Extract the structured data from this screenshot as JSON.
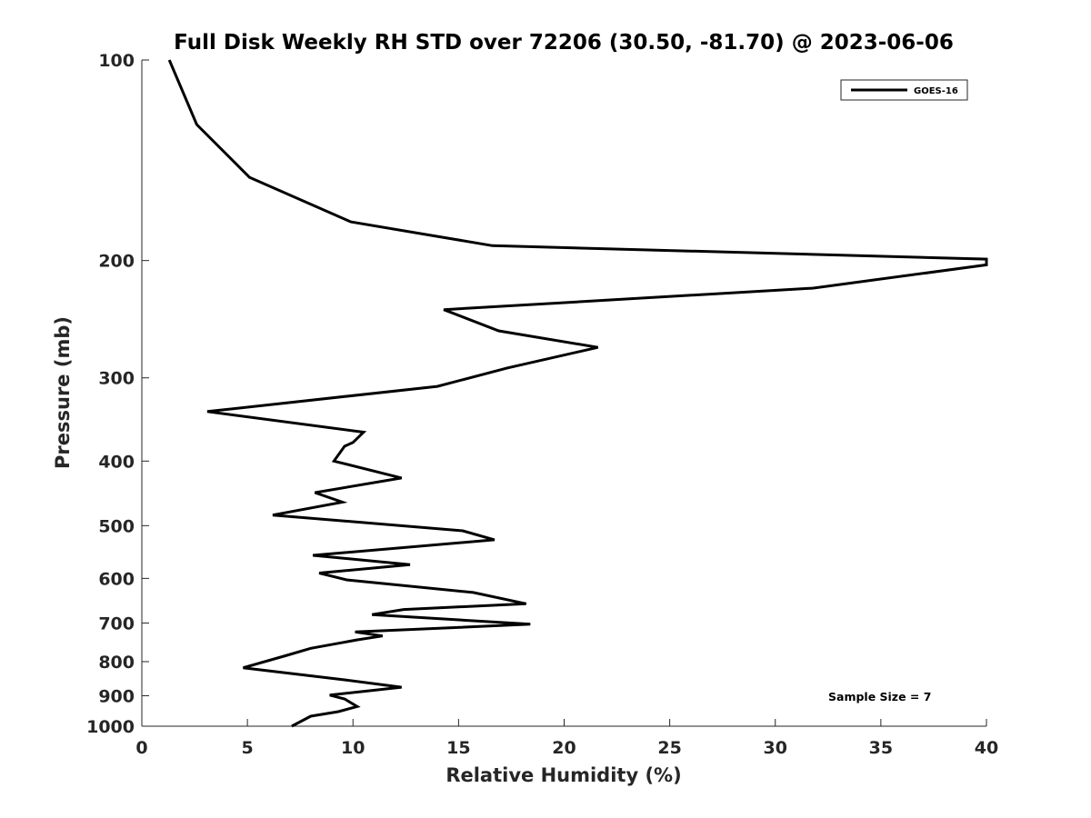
{
  "chart_data": {
    "type": "line",
    "title": "Full Disk Weekly RH STD over 72206 (30.50, -81.70) @ 2023-06-06",
    "xlabel": "Relative Humidity (%)",
    "ylabel": "Pressure (mb)",
    "xlim": [
      0,
      40
    ],
    "ylim": [
      1000,
      100
    ],
    "yscale": "log",
    "y_inverted": true,
    "xticks": [
      0,
      5,
      10,
      15,
      20,
      25,
      30,
      35,
      40
    ],
    "yticks": [
      100,
      200,
      300,
      400,
      500,
      600,
      700,
      800,
      900,
      1000
    ],
    "grid": false,
    "legend": {
      "position": "top-right",
      "entries": [
        "GOES-16"
      ]
    },
    "annotation": "Sample Size = 7",
    "series": [
      {
        "name": "GOES-16",
        "color": "#000000",
        "points": [
          [
            1.3,
            100
          ],
          [
            2.6,
            125
          ],
          [
            5.1,
            150
          ],
          [
            9.9,
            175
          ],
          [
            16.6,
            190
          ],
          [
            40,
            199
          ],
          [
            40,
            203
          ],
          [
            31.8,
            220
          ],
          [
            14.3,
            237
          ],
          [
            16.9,
            255
          ],
          [
            21.6,
            270
          ],
          [
            17.3,
            290
          ],
          [
            14.0,
            309
          ],
          [
            3.1,
            337
          ],
          [
            10.5,
            362
          ],
          [
            10.0,
            375
          ],
          [
            9.6,
            380
          ],
          [
            9.1,
            400
          ],
          [
            12.3,
            424
          ],
          [
            8.2,
            446
          ],
          [
            9.5,
            461
          ],
          [
            6.2,
            482
          ],
          [
            15.2,
            509
          ],
          [
            16.7,
            525
          ],
          [
            8.1,
            554
          ],
          [
            12.7,
            572
          ],
          [
            8.4,
            589
          ],
          [
            9.7,
            603
          ],
          [
            15.7,
            630
          ],
          [
            18.2,
            655
          ],
          [
            12.4,
            668
          ],
          [
            10.9,
            680
          ],
          [
            18.4,
            703
          ],
          [
            10.1,
            722
          ],
          [
            11.4,
            732
          ],
          [
            10.2,
            742
          ],
          [
            8.0,
            764
          ],
          [
            6.8,
            784
          ],
          [
            4.8,
            817
          ],
          [
            9.6,
            852
          ],
          [
            12.3,
            874
          ],
          [
            8.9,
            898
          ],
          [
            9.6,
            910
          ],
          [
            10.2,
            934
          ],
          [
            9.3,
            951
          ],
          [
            8.0,
            966
          ],
          [
            7.1,
            1000
          ]
        ]
      }
    ]
  }
}
